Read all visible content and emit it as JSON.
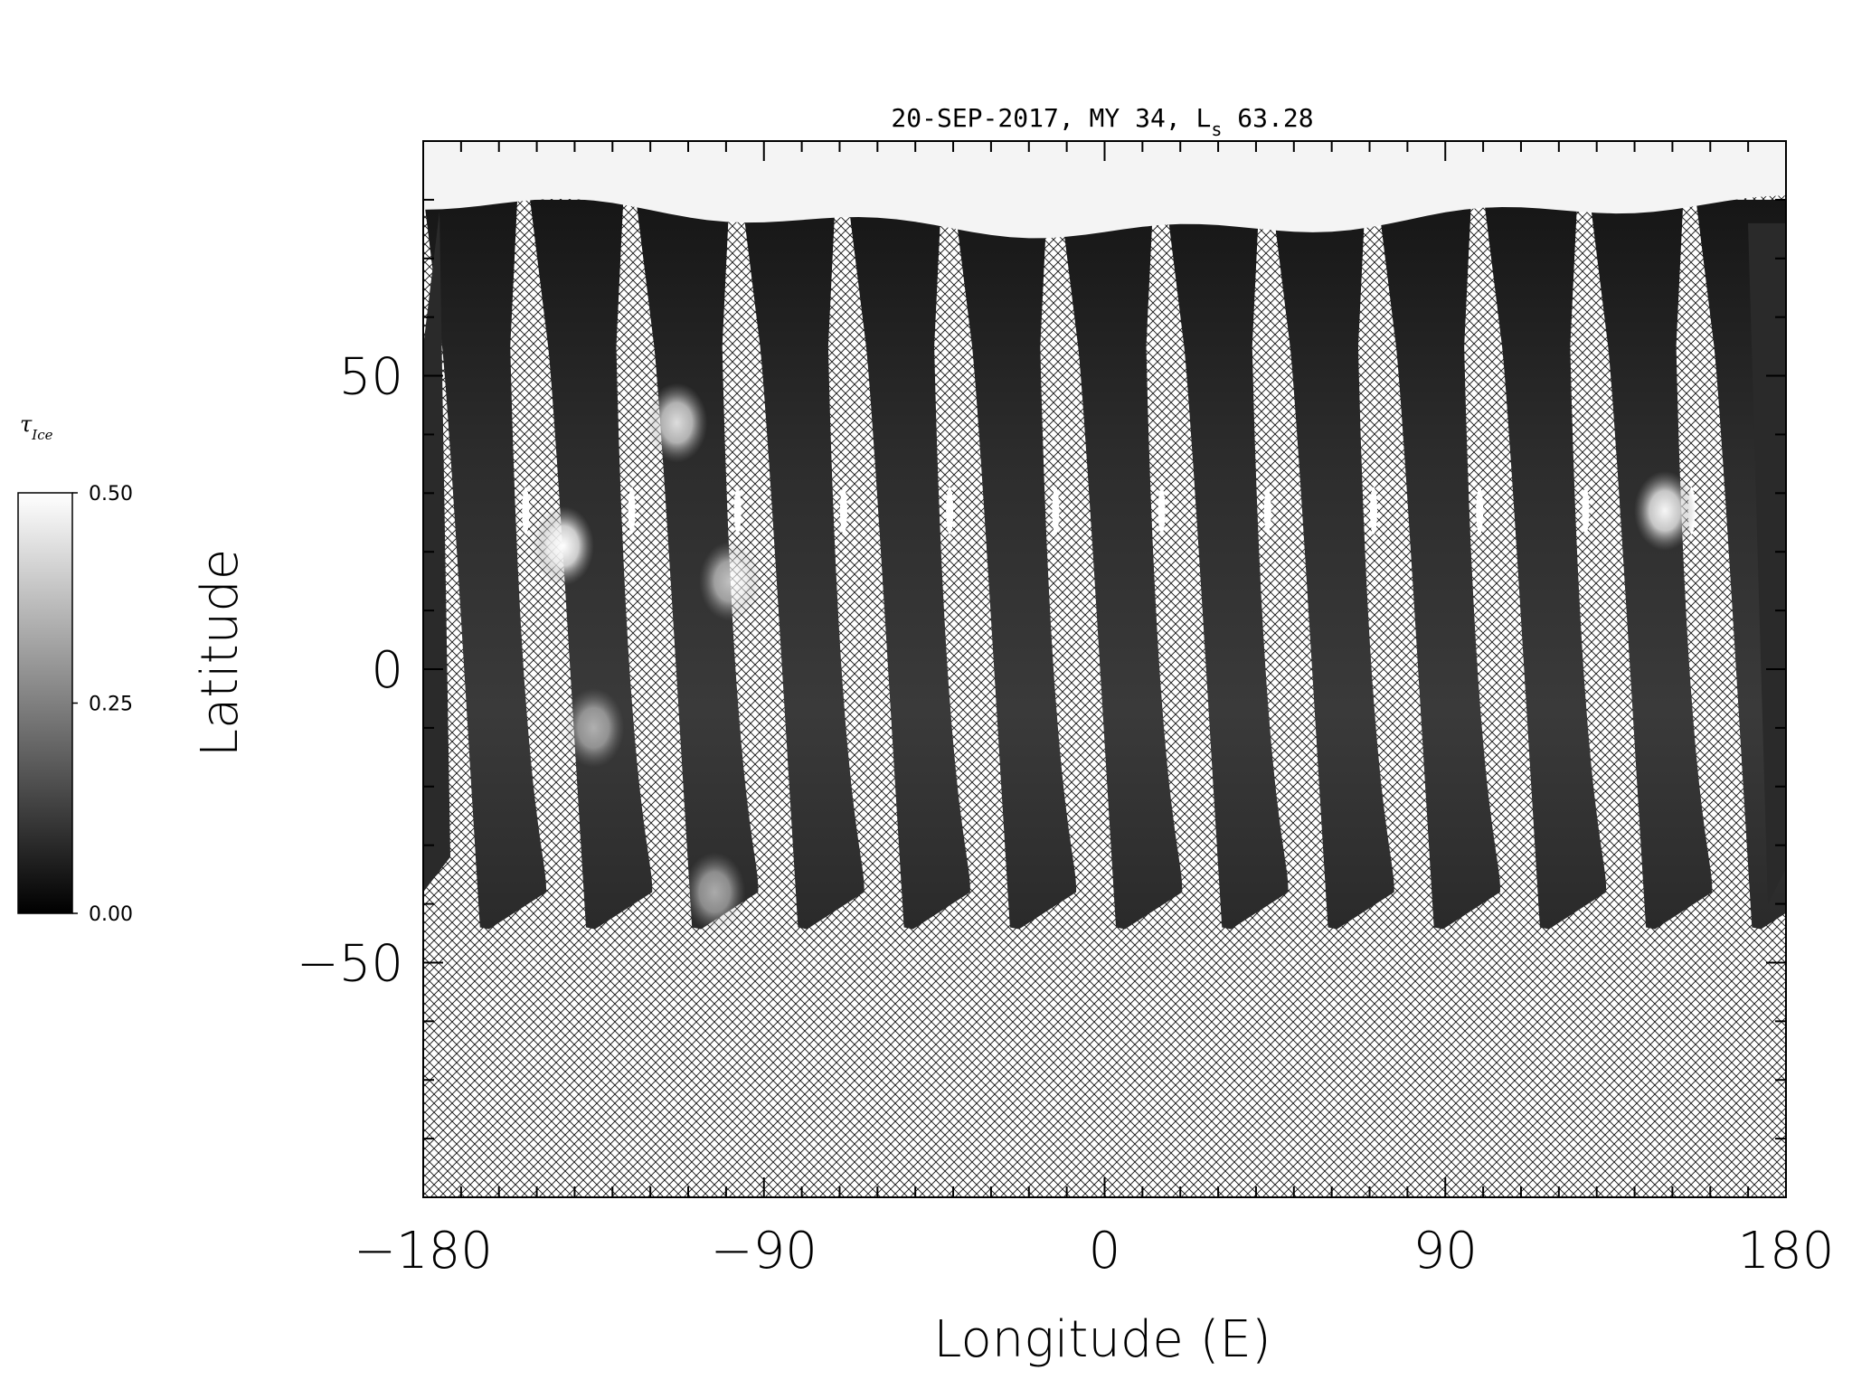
{
  "chart_data": {
    "type": "heatmap",
    "title": "20-SEP-2017, MY 34,  L",
    "title_subscript": "s",
    "title_suffix": " 63.28",
    "xlabel": "Longitude (E)",
    "ylabel": "Latitude",
    "xlim": [
      -180,
      180
    ],
    "ylim": [
      -90,
      90
    ],
    "xticks": [
      -180,
      -90,
      0,
      90,
      180
    ],
    "xtick_labels": [
      "−180",
      "−90",
      "0",
      "90",
      "180"
    ],
    "yticks": [
      -50,
      0,
      50
    ],
    "ytick_labels": [
      "−50",
      "0",
      "50"
    ],
    "minor_x_step": 10,
    "minor_y_step": 10,
    "grid": false,
    "colorbar": {
      "label": "τ",
      "label_subscript": "Ice",
      "range": [
        0.0,
        0.5
      ],
      "ticks": [
        0.0,
        0.25,
        0.5
      ],
      "tick_labels": [
        "0.00",
        "0.25",
        "0.50"
      ],
      "colormap": "grayscale"
    },
    "no_data_pattern": "cross-hatch",
    "polar_cap_lat": 85,
    "swaths": {
      "count": 13,
      "first_lon_south": -165,
      "spacing_deg": 28,
      "width_deg": 17,
      "south_lat": -44,
      "north_lat": 55,
      "typical_value": 0.08,
      "bright_clouds": [
        {
          "lon": -143,
          "lat": 21,
          "value": 0.5
        },
        {
          "lon": -113,
          "lat": 42,
          "value": 0.42
        },
        {
          "lon": 148,
          "lat": 27,
          "value": 0.48
        },
        {
          "lon": -99,
          "lat": 15,
          "value": 0.35
        },
        {
          "lon": -103,
          "lat": -38,
          "value": 0.3
        },
        {
          "lon": -135,
          "lat": -10,
          "value": 0.3
        }
      ]
    }
  },
  "colors": {
    "axis": "#000000",
    "background": "#ffffff",
    "polar_ice": "#f4f4f4",
    "hatch": "#111111"
  }
}
